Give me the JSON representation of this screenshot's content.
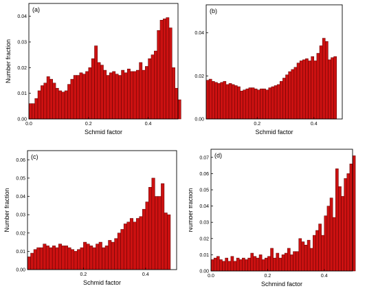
{
  "bar_color": "#cc1111",
  "bar_edge": "#5a0000",
  "chart_data": [
    {
      "type": "bar",
      "panel_label": "(a)",
      "xlabel": "Schmid factor",
      "ylabel": "Number fraction",
      "xlim": [
        0.0,
        0.5
      ],
      "ylim": [
        0.0,
        0.045
      ],
      "xticks": [
        "0.0",
        "0.2",
        "0.4"
      ],
      "xtick_values": [
        0.0,
        0.2,
        0.4
      ],
      "yticks": [
        "0.00",
        "0.01",
        "0.02",
        "0.03",
        "0.04"
      ],
      "ytick_values": [
        0.0,
        0.01,
        0.02,
        0.03,
        0.04
      ],
      "bin_start": 0.0,
      "bin_width": 0.01,
      "values": [
        0.006,
        0.006,
        0.008,
        0.011,
        0.013,
        0.014,
        0.0165,
        0.0155,
        0.014,
        0.012,
        0.011,
        0.0105,
        0.011,
        0.0135,
        0.0155,
        0.017,
        0.017,
        0.018,
        0.0175,
        0.0185,
        0.02,
        0.0235,
        0.0285,
        0.022,
        0.021,
        0.019,
        0.017,
        0.018,
        0.0185,
        0.0175,
        0.017,
        0.019,
        0.018,
        0.0195,
        0.0185,
        0.0185,
        0.019,
        0.022,
        0.019,
        0.0205,
        0.0235,
        0.025,
        0.0265,
        0.0345,
        0.0385,
        0.039,
        0.0395,
        0.0355,
        0.02,
        0.012,
        0.0075
      ]
    },
    {
      "type": "bar",
      "panel_label": "(b)",
      "xlabel": "Schmid factor",
      "ylabel": "Number fraction",
      "xlim": [
        0.02,
        0.5
      ],
      "ylim": [
        0.0,
        0.053
      ],
      "xticks": [
        "0.2",
        "0.4"
      ],
      "xtick_values": [
        0.2,
        0.4
      ],
      "yticks": [
        "0.00",
        "0.02",
        "0.04"
      ],
      "ytick_values": [
        0.0,
        0.02,
        0.04
      ],
      "bin_start": 0.02,
      "bin_width": 0.01,
      "values": [
        0.018,
        0.0185,
        0.0175,
        0.017,
        0.0165,
        0.017,
        0.0175,
        0.016,
        0.0165,
        0.016,
        0.0155,
        0.015,
        0.013,
        0.0135,
        0.014,
        0.0145,
        0.0145,
        0.014,
        0.0135,
        0.014,
        0.014,
        0.0135,
        0.0145,
        0.015,
        0.0155,
        0.016,
        0.0175,
        0.019,
        0.0205,
        0.022,
        0.023,
        0.024,
        0.026,
        0.027,
        0.0275,
        0.028,
        0.027,
        0.029,
        0.027,
        0.0305,
        0.034,
        0.0375,
        0.036,
        0.0275,
        0.0285,
        0.029
      ]
    },
    {
      "type": "bar",
      "panel_label": "(c)",
      "xlabel": "Schmid factor",
      "ylabel": "Number fraction",
      "xlim": [
        0.02,
        0.5
      ],
      "ylim": [
        0.0,
        0.065
      ],
      "xticks": [
        "0.2",
        "0.4"
      ],
      "xtick_values": [
        0.2,
        0.4
      ],
      "yticks": [
        "0.00",
        "0.01",
        "0.02",
        "0.03",
        "0.04",
        "0.05",
        "0.06"
      ],
      "ytick_values": [
        0.0,
        0.01,
        0.02,
        0.03,
        0.04,
        0.05,
        0.06
      ],
      "bin_start": 0.02,
      "bin_width": 0.01,
      "values": [
        0.007,
        0.009,
        0.011,
        0.012,
        0.012,
        0.014,
        0.013,
        0.012,
        0.013,
        0.012,
        0.014,
        0.013,
        0.013,
        0.012,
        0.011,
        0.01,
        0.011,
        0.012,
        0.015,
        0.014,
        0.013,
        0.012,
        0.014,
        0.015,
        0.012,
        0.013,
        0.016,
        0.015,
        0.017,
        0.02,
        0.022,
        0.025,
        0.026,
        0.028,
        0.026,
        0.028,
        0.029,
        0.033,
        0.037,
        0.045,
        0.05,
        0.04,
        0.04,
        0.047,
        0.031,
        0.03
      ]
    },
    {
      "type": "bar",
      "panel_label": "(d)",
      "xlabel": "Schmind factor",
      "ylabel": "Number fraction",
      "xlim": [
        0.0,
        0.5
      ],
      "ylim": [
        0.0,
        0.075
      ],
      "xticks": [
        "0.0",
        "0.2",
        "0.4"
      ],
      "xtick_values": [
        0.0,
        0.2,
        0.4
      ],
      "yticks": [
        "0.00",
        "0.01",
        "0.02",
        "0.03",
        "0.04",
        "0.05",
        "0.06",
        "0.07"
      ],
      "ytick_values": [
        0.0,
        0.01,
        0.02,
        0.03,
        0.04,
        0.05,
        0.06,
        0.07
      ],
      "bin_start": 0.0,
      "bin_width": 0.01,
      "values": [
        0.007,
        0.008,
        0.009,
        0.007,
        0.006,
        0.008,
        0.006,
        0.009,
        0.006,
        0.008,
        0.007,
        0.008,
        0.007,
        0.008,
        0.011,
        0.009,
        0.008,
        0.01,
        0.007,
        0.008,
        0.009,
        0.014,
        0.008,
        0.011,
        0.008,
        0.01,
        0.011,
        0.014,
        0.01,
        0.012,
        0.012,
        0.02,
        0.018,
        0.016,
        0.019,
        0.014,
        0.022,
        0.025,
        0.029,
        0.022,
        0.034,
        0.04,
        0.045,
        0.033,
        0.063,
        0.052,
        0.046,
        0.057,
        0.06,
        0.066,
        0.071
      ]
    }
  ]
}
